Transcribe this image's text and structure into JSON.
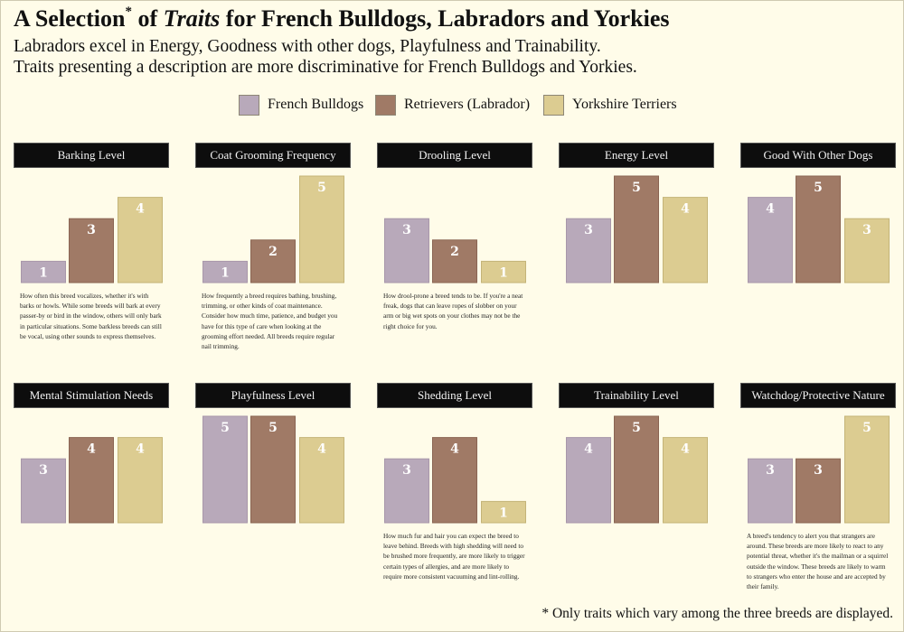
{
  "title": {
    "prefix": "A Selection",
    "mark": "*",
    "of": "of",
    "traits": "Traits",
    "suffix": "for French Bulldogs, Labradors and Yorkies"
  },
  "subtitle_line1": "Labradors excel in Energy, Goodness with other dogs, Playfulness and Trainability.",
  "subtitle_line2": "Traits presenting a description are more discriminative for French Bulldogs and Yorkies.",
  "legend": [
    {
      "label": "French Bulldogs",
      "color": "#b8a9ba"
    },
    {
      "label": "Retrievers (Labrador)",
      "color": "#a07a66"
    },
    {
      "label": "Yorkshire Terriers",
      "color": "#dccc91"
    }
  ],
  "footnote": "* Only traits which vary among the three breeds are displayed.",
  "chart_data": {
    "type": "bar",
    "series_names": [
      "French Bulldogs",
      "Retrievers (Labrador)",
      "Yorkshire Terriers"
    ],
    "colors": [
      "#b8a9ba",
      "#a07a66",
      "#dccc91"
    ],
    "ylim": [
      0,
      5
    ],
    "panels": [
      {
        "trait": "Barking Level",
        "values": [
          1,
          3,
          4
        ],
        "description": "How often this breed vocalizes, whether it's with barks or howls. While some breeds will bark at every passer-by or bird in the window, others will only bark in particular situations. Some barkless breeds can still be vocal, using other sounds to express themselves."
      },
      {
        "trait": "Coat Grooming Frequency",
        "values": [
          1,
          2,
          5
        ],
        "description": "How frequently a breed requires bathing, brushing, trimming, or other kinds of coat maintenance. Consider how much time, patience, and budget you have for this type of care when looking at the grooming effort needed. All breeds require regular nail trimming."
      },
      {
        "trait": "Drooling Level",
        "values": [
          3,
          2,
          1
        ],
        "description": "How drool-prone a breed tends to be. If you're a neat freak, dogs that can leave ropes of slobber on your arm or big wet spots on your clothes may not be the right choice for you."
      },
      {
        "trait": "Energy Level",
        "values": [
          3,
          5,
          4
        ],
        "description": ""
      },
      {
        "trait": "Good With Other Dogs",
        "values": [
          4,
          5,
          3
        ],
        "description": ""
      },
      {
        "trait": "Mental Stimulation Needs",
        "values": [
          3,
          4,
          4
        ],
        "description": ""
      },
      {
        "trait": "Playfulness Level",
        "values": [
          5,
          5,
          4
        ],
        "description": ""
      },
      {
        "trait": "Shedding Level",
        "values": [
          3,
          4,
          1
        ],
        "description": "How much fur and hair you can expect the breed to leave behind. Breeds with high shedding will need to be brushed more frequently, are more likely to trigger certain types of allergies, and are more likely to require more consistent vacuuming and lint-rolling."
      },
      {
        "trait": "Trainability Level",
        "values": [
          4,
          5,
          4
        ],
        "description": ""
      },
      {
        "trait": "Watchdog/Protective Nature",
        "values": [
          3,
          3,
          5
        ],
        "description": "A breed's tendency to alert you that strangers are around. These breeds are more likely to react to any potential threat, whether it's the mailman or a squirrel outside the window. These breeds are likely to warm to strangers who enter the house and are accepted by their family."
      }
    ]
  }
}
